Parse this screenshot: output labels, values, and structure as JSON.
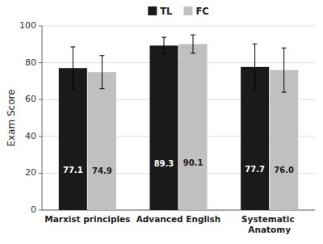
{
  "chart_data": {
    "type": "bar",
    "y_label": "Exam Score",
    "categories": [
      "Marxist principles",
      "Advanced English",
      "Systematic Anatomy"
    ],
    "series": [
      {
        "name": "TL",
        "color": "#1a1a1a",
        "values": [
          77.1,
          89.3,
          77.7
        ],
        "errors": [
          11.5,
          4.5,
          12.5
        ],
        "value_labels": [
          "77.1",
          "89.3",
          "77.7"
        ]
      },
      {
        "name": "FC",
        "color": "#c0c0c0",
        "values": [
          74.9,
          90.1,
          76.0
        ],
        "errors": [
          9.0,
          5.0,
          12.0
        ],
        "value_labels": [
          "74.9",
          "90.1",
          "76.0"
        ]
      }
    ],
    "ylim": [
      0,
      100
    ],
    "yticks": [
      0,
      20,
      40,
      60,
      80,
      100
    ],
    "grid": true,
    "legend": "top",
    "data_labels": true
  }
}
